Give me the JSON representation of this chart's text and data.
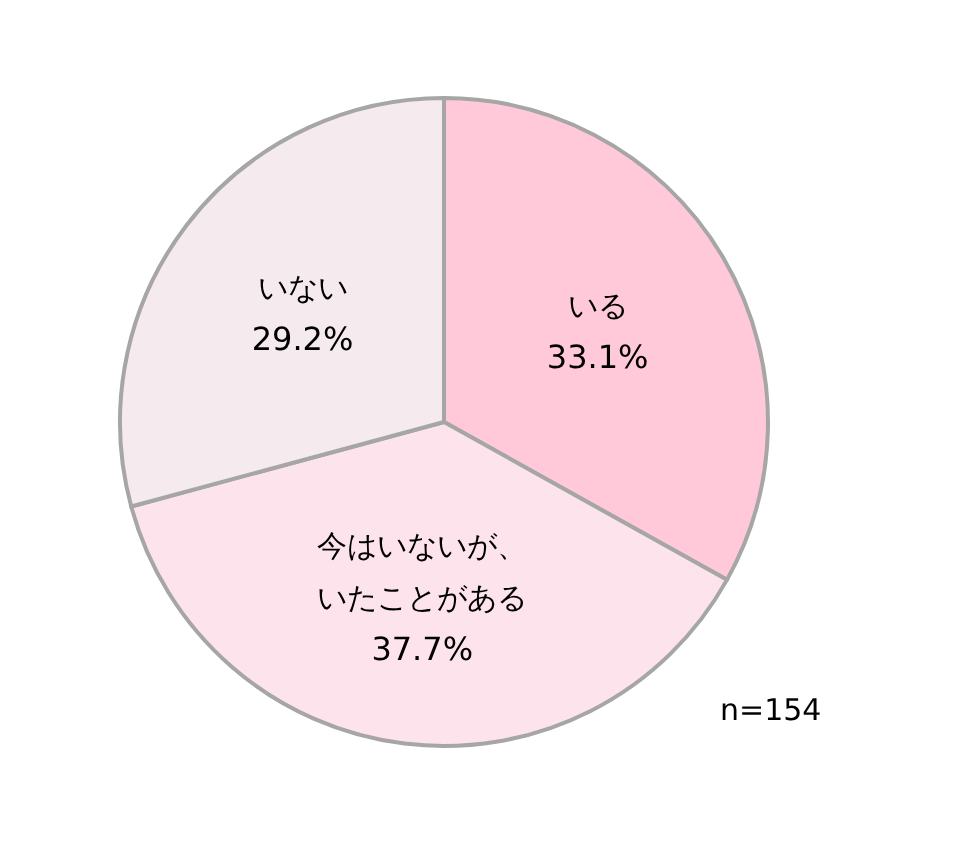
{
  "chart_data": {
    "type": "pie",
    "categories": [
      "いる",
      "今はいないが、いたことがある",
      "いない"
    ],
    "values": [
      33.1,
      37.7,
      29.2
    ],
    "colors": [
      "#ffc9d9",
      "#fde4ec",
      "#f5eaee"
    ],
    "value_labels": [
      "33.1%",
      "37.7%",
      "29.2%"
    ],
    "annotations": [
      "n=154"
    ]
  }
}
